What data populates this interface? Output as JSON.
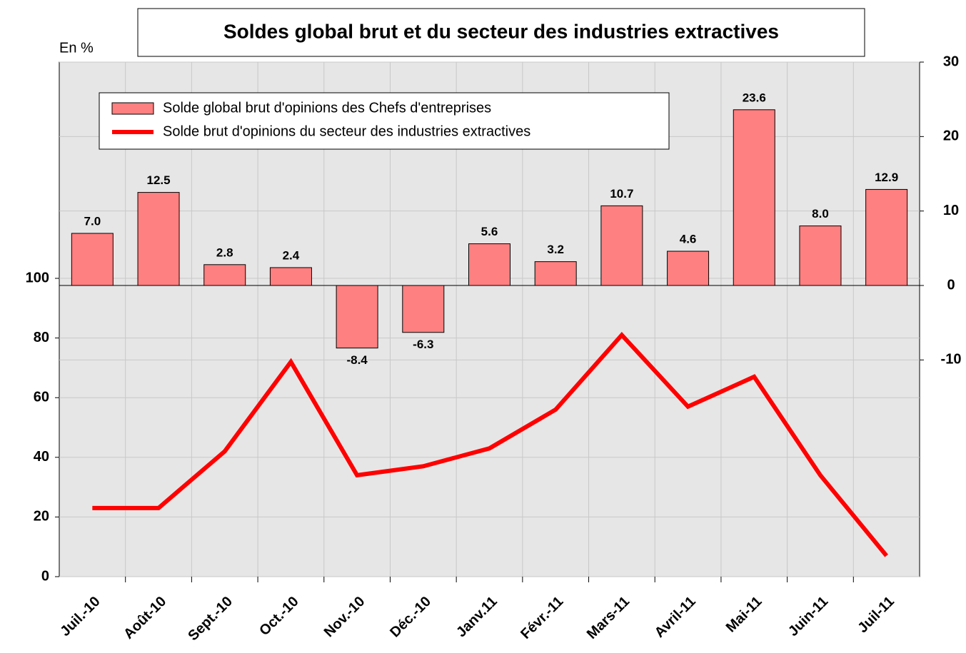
{
  "chart_data": {
    "type": "bar_line",
    "title": "Soldes global brut et du secteur des industries extractives",
    "y_label": "En %",
    "categories": [
      "Juil.-10",
      "Août-10",
      "Sept.-10",
      "Oct.-10",
      "Nov.-10",
      "Déc.-10",
      "Janv.11",
      "Févr.-11",
      "Mars-11",
      "Avril-11",
      "Mai-11",
      "Juin-11",
      "Juil-11"
    ],
    "series": [
      {
        "name": "Solde global brut d'opinions des Chefs d'entreprises",
        "type": "bar",
        "axis": "y2",
        "color": "#ff8080",
        "values": [
          7.0,
          12.5,
          2.8,
          2.4,
          -8.4,
          -6.3,
          5.6,
          3.2,
          10.7,
          4.6,
          23.6,
          8.0,
          12.9
        ],
        "value_labels": [
          "7.0",
          "12.5",
          "2.8",
          "2.4",
          "-8.4",
          "-6.3",
          "5.6",
          "3.2",
          "10.7",
          "4.6",
          "23.6",
          "8.0",
          "12.9"
        ]
      },
      {
        "name": "Solde brut d'opinions du secteur des industries extractives",
        "type": "line",
        "color": "#ff0000",
        "values": [
          23,
          23,
          42,
          72,
          34,
          37,
          43,
          56,
          81,
          57,
          67,
          34,
          7
        ]
      }
    ],
    "ylim": [
      0,
      172.5
    ],
    "yticks": [
      0,
      20,
      40,
      60,
      80,
      100
    ],
    "y2lim": [
      -39.1,
      30
    ],
    "y2ticks": [
      -10,
      0,
      10,
      20,
      30
    ],
    "grid": true
  }
}
